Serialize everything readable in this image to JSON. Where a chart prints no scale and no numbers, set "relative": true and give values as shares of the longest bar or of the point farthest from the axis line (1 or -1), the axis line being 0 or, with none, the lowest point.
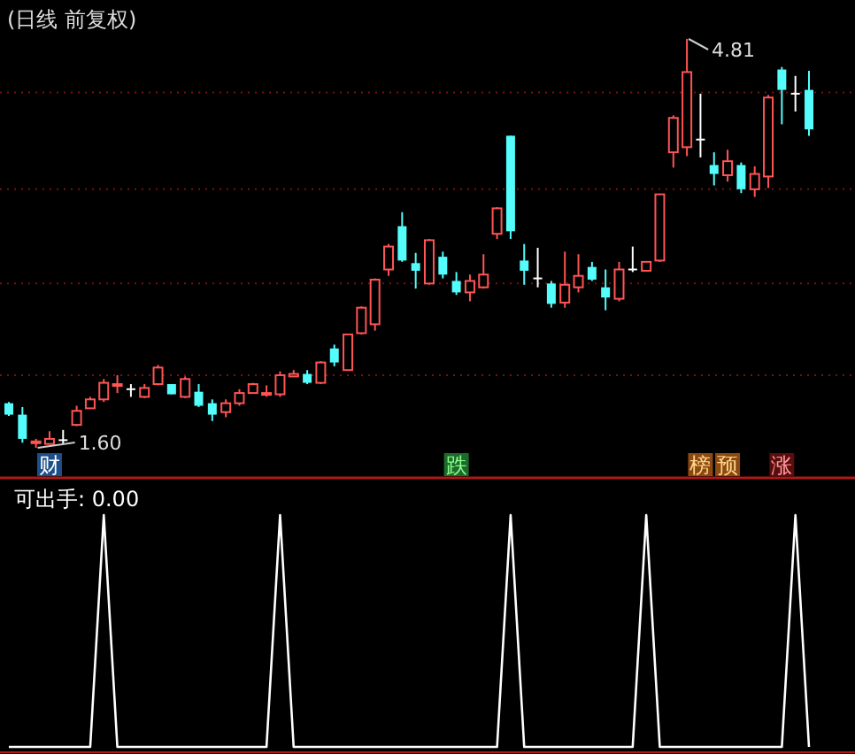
{
  "chart_data": [
    {
      "type": "candlestick",
      "title": "(日线 前复权)",
      "grid": true,
      "yticks": [
        {
          "value": 2.17,
          "label": null
        },
        {
          "value": 2.89,
          "label": null
        },
        {
          "value": 3.63,
          "label": null
        },
        {
          "value": 4.39,
          "label": null
        }
      ],
      "categories": [
        null,
        null,
        null,
        null,
        null,
        null,
        null,
        null,
        null,
        null,
        null,
        null,
        null,
        null,
        null,
        null,
        null,
        null,
        null,
        null,
        null,
        null,
        null,
        null,
        null,
        null,
        null,
        null,
        null,
        null,
        null,
        null,
        null,
        null,
        null,
        null,
        null,
        null,
        null,
        null,
        null,
        null,
        null,
        null,
        null,
        null,
        null,
        null,
        null,
        null,
        null,
        null,
        null,
        null,
        null,
        null,
        null,
        null,
        null,
        null
      ],
      "ohlc": [
        [
          1.95,
          1.96,
          1.85,
          1.86
        ],
        [
          1.86,
          1.92,
          1.64,
          1.67
        ],
        [
          1.64,
          1.67,
          1.6,
          1.65
        ],
        [
          1.63,
          1.73,
          1.63,
          1.67
        ],
        [
          1.66,
          1.74,
          1.63,
          1.66
        ],
        [
          1.78,
          1.93,
          1.77,
          1.89
        ],
        [
          1.91,
          2.0,
          1.91,
          1.98
        ],
        [
          1.98,
          2.14,
          1.96,
          2.11
        ],
        [
          2.09,
          2.17,
          2.03,
          2.1
        ],
        [
          2.06,
          2.1,
          2.0,
          2.06
        ],
        [
          2.0,
          2.1,
          1.99,
          2.07
        ],
        [
          2.1,
          2.25,
          2.09,
          2.23
        ],
        [
          2.1,
          2.1,
          2.02,
          2.02
        ],
        [
          2.0,
          2.16,
          1.99,
          2.14
        ],
        [
          2.04,
          2.1,
          1.92,
          1.93
        ],
        [
          1.95,
          1.98,
          1.81,
          1.86
        ],
        [
          1.88,
          1.98,
          1.84,
          1.95
        ],
        [
          1.95,
          2.06,
          1.93,
          2.03
        ],
        [
          2.03,
          2.11,
          2.03,
          2.1
        ],
        [
          2.02,
          2.09,
          2.0,
          2.03
        ],
        [
          2.02,
          2.2,
          2.0,
          2.17
        ],
        [
          2.16,
          2.21,
          2.16,
          2.18
        ],
        [
          2.18,
          2.21,
          2.1,
          2.11
        ],
        [
          2.11,
          2.28,
          2.1,
          2.27
        ],
        [
          2.38,
          2.41,
          2.24,
          2.27
        ],
        [
          2.21,
          2.49,
          2.21,
          2.49
        ],
        [
          2.5,
          2.71,
          2.49,
          2.7
        ],
        [
          2.57,
          2.93,
          2.52,
          2.92
        ],
        [
          3.0,
          3.2,
          2.95,
          3.18
        ],
        [
          3.34,
          3.45,
          3.06,
          3.07
        ],
        [
          3.05,
          3.13,
          2.85,
          2.99
        ],
        [
          2.89,
          3.24,
          2.88,
          3.23
        ],
        [
          3.1,
          3.14,
          2.93,
          2.96
        ],
        [
          2.91,
          2.98,
          2.8,
          2.82
        ],
        [
          2.82,
          2.96,
          2.75,
          2.91
        ],
        [
          2.86,
          3.12,
          2.85,
          2.96
        ],
        [
          3.28,
          3.49,
          3.24,
          3.48
        ],
        [
          4.05,
          4.05,
          3.24,
          3.3
        ],
        [
          3.07,
          3.2,
          2.88,
          2.99
        ],
        [
          2.93,
          3.17,
          2.86,
          2.93
        ],
        [
          2.89,
          2.91,
          2.7,
          2.73
        ],
        [
          2.74,
          3.14,
          2.7,
          2.88
        ],
        [
          2.86,
          3.12,
          2.82,
          2.95
        ],
        [
          3.02,
          3.06,
          2.91,
          2.92
        ],
        [
          2.86,
          3.0,
          2.68,
          2.78
        ],
        [
          2.77,
          3.06,
          2.75,
          3.0
        ],
        [
          3.0,
          3.18,
          2.98,
          3.0
        ],
        [
          2.99,
          3.06,
          2.99,
          3.06
        ],
        [
          3.07,
          3.59,
          3.06,
          3.59
        ],
        [
          3.92,
          4.21,
          3.8,
          4.19
        ],
        [
          3.96,
          4.81,
          3.89,
          4.55
        ],
        [
          4.02,
          4.38,
          3.88,
          4.02
        ],
        [
          3.82,
          3.92,
          3.66,
          3.75
        ],
        [
          3.74,
          3.94,
          3.69,
          3.85
        ],
        [
          3.82,
          3.84,
          3.6,
          3.63
        ],
        [
          3.63,
          3.81,
          3.57,
          3.75
        ],
        [
          3.73,
          4.37,
          3.64,
          4.35
        ],
        [
          4.57,
          4.59,
          4.14,
          4.41
        ],
        [
          4.38,
          4.52,
          4.24,
          4.38
        ],
        [
          4.41,
          4.56,
          4.05,
          4.1
        ]
      ],
      "annotations": [
        "4.81",
        "1.60",
        "财",
        "跌",
        "榜",
        "预",
        "涨"
      ]
    },
    {
      "type": "line",
      "title": "可出手: 0.00",
      "relative": true,
      "categories": [
        null,
        null,
        null,
        null,
        null,
        null,
        null,
        null,
        null,
        null,
        null,
        null,
        null,
        null,
        null,
        null,
        null,
        null,
        null,
        null,
        null,
        null,
        null,
        null,
        null,
        null,
        null,
        null,
        null,
        null,
        null,
        null,
        null,
        null,
        null,
        null,
        null,
        null,
        null,
        null,
        null,
        null,
        null,
        null,
        null,
        null,
        null,
        null,
        null,
        null,
        null,
        null,
        null,
        null,
        null,
        null,
        null,
        null,
        null,
        null
      ],
      "series": [
        {
          "color": "#ffffff",
          "values": [
            0,
            0,
            0,
            0,
            0,
            0,
            0,
            1,
            0,
            0,
            0,
            0,
            0,
            0,
            0,
            0,
            0,
            0,
            0,
            0,
            1,
            0,
            0,
            0,
            0,
            0,
            0,
            0,
            0,
            0,
            0,
            0,
            0,
            0,
            0,
            0,
            0,
            1,
            0,
            0,
            0,
            0,
            0,
            0,
            0,
            0,
            0,
            1,
            0,
            0,
            0,
            0,
            0,
            0,
            0,
            0,
            0,
            0,
            1,
            0
          ]
        }
      ]
    }
  ]
}
